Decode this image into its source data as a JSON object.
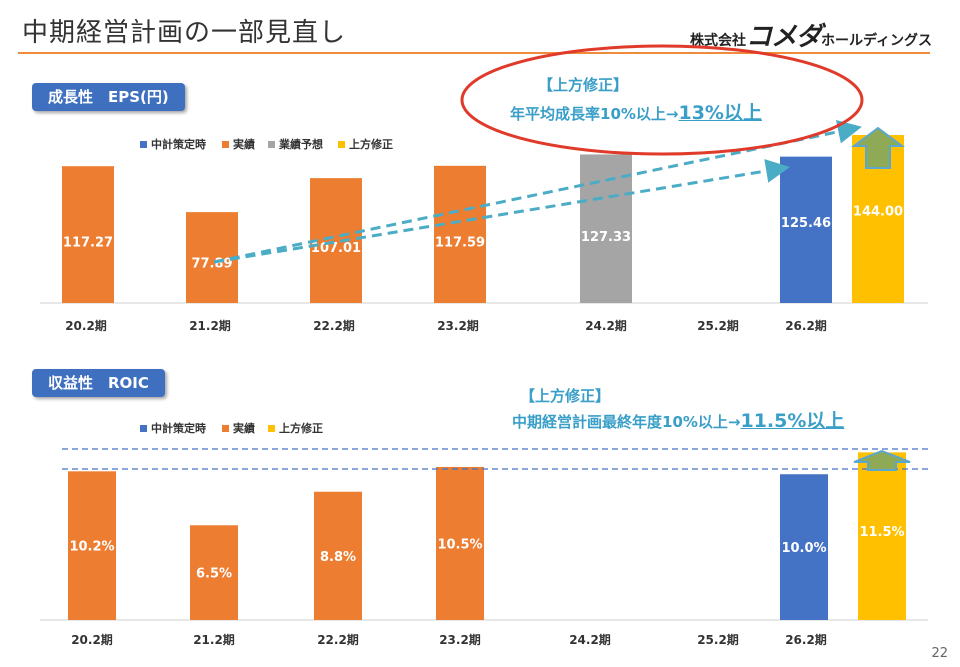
{
  "header": {
    "title": "中期経営計画の一部見直し",
    "logo_prefix": "株式会社",
    "logo_name": "コメダ",
    "logo_suffix": "ホールディングス"
  },
  "page_number": "22",
  "colors": {
    "plan": "#4472c4",
    "actual": "#ed7d31",
    "forecast": "#a5a5a5",
    "upward": "#ffc000",
    "arrow": "#4bacc6",
    "note": "#3a9fc8",
    "circle": "#e03a2a",
    "up_arrow_fill": "#8faa56",
    "up_arrow_stroke": "#5aa8d0"
  },
  "chart_data": [
    {
      "type": "bar",
      "section_label": "成長性　EPS(円)",
      "categories": [
        "20.2期",
        "21.2期",
        "22.2期",
        "23.2期",
        "24.2期",
        "25.2期",
        "26.2期"
      ],
      "legend": [
        "中計策定時",
        "実績",
        "業績予想",
        "上方修正"
      ],
      "bars": [
        {
          "category": "20.2期",
          "series": "実績",
          "value": 117.27,
          "label": "117.27"
        },
        {
          "category": "21.2期",
          "series": "実績",
          "value": 77.89,
          "label": "77.89"
        },
        {
          "category": "22.2期",
          "series": "実績",
          "value": 107.01,
          "label": "107.01"
        },
        {
          "category": "23.2期",
          "series": "実績",
          "value": 117.59,
          "label": "117.59"
        },
        {
          "category": "24.2期",
          "series": "業績予想",
          "value": 127.33,
          "label": "127.33"
        },
        {
          "category": "26.2期",
          "series": "中計策定時",
          "value": 125.46,
          "label": "125.46"
        },
        {
          "category": "26.2期",
          "series": "上方修正",
          "value": 144.0,
          "label": "144.00"
        }
      ],
      "ylim": [
        0,
        150
      ],
      "annotation": {
        "bracket": "【上方修正】",
        "text": "年平均成長率10%以上→",
        "emphasis": "13%以上"
      }
    },
    {
      "type": "bar",
      "section_label": "収益性　ROIC",
      "categories": [
        "20.2期",
        "21.2期",
        "22.2期",
        "23.2期",
        "24.2期",
        "25.2期",
        "26.2期"
      ],
      "legend": [
        "中計策定時",
        "実績",
        "上方修正"
      ],
      "bars": [
        {
          "category": "20.2期",
          "series": "実績",
          "value": 10.2,
          "label": "10.2%"
        },
        {
          "category": "21.2期",
          "series": "実績",
          "value": 6.5,
          "label": "6.5%"
        },
        {
          "category": "22.2期",
          "series": "実績",
          "value": 8.8,
          "label": "8.8%"
        },
        {
          "category": "23.2期",
          "series": "実績",
          "value": 10.5,
          "label": "10.5%"
        },
        {
          "category": "26.2期",
          "series": "中計策定時",
          "value": 10.0,
          "label": "10.0%"
        },
        {
          "category": "26.2期",
          "series": "上方修正",
          "value": 11.5,
          "label": "11.5%"
        }
      ],
      "ylim": [
        0,
        11.8
      ],
      "annotation": {
        "bracket": "【上方修正】",
        "text": "中期経営計画最終年度10%以上→",
        "emphasis": "11.5%以上"
      }
    }
  ]
}
